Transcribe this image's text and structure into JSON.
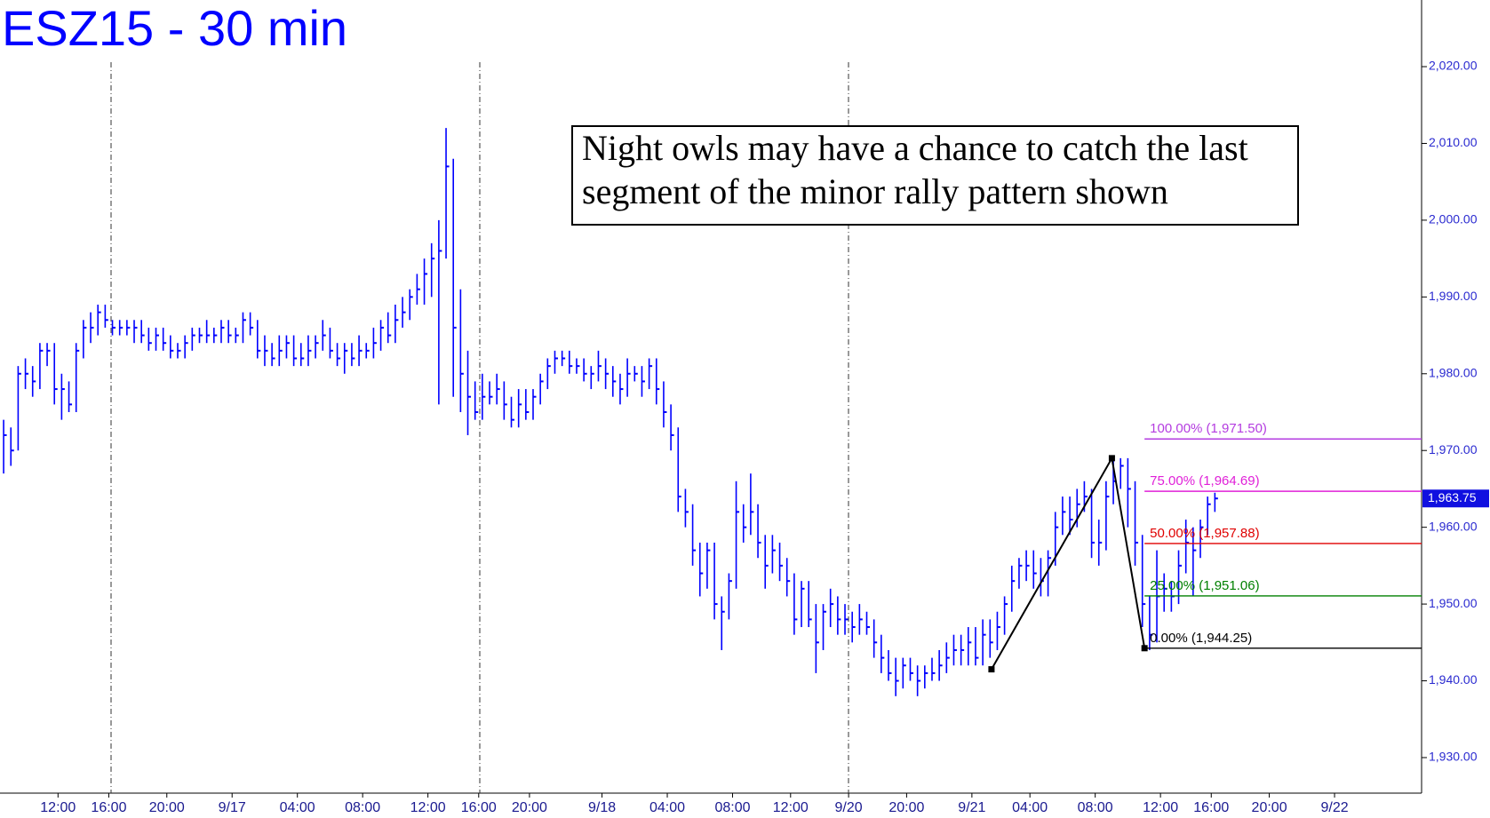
{
  "chart_data": {
    "type": "ohlc",
    "title": "ESZ15 - 30 min",
    "annotation": [
      "Night owls may have a chance to catch the last",
      "segment of the minor rally pattern shown"
    ],
    "color": "#0000ff",
    "xlim": [
      0,
      196
    ],
    "ylim": [
      1925.37,
      2028.68
    ],
    "xticks": [
      {
        "value": 8,
        "label": "12:00"
      },
      {
        "value": 15,
        "label": "16:00"
      },
      {
        "value": 23,
        "label": "20:00"
      },
      {
        "value": 32,
        "label": "9/17"
      },
      {
        "value": 41,
        "label": "04:00"
      },
      {
        "value": 50,
        "label": "08:00"
      },
      {
        "value": 59,
        "label": "12:00"
      },
      {
        "value": 66,
        "label": "16:00"
      },
      {
        "value": 73,
        "label": "20:00"
      },
      {
        "value": 83,
        "label": "9/18"
      },
      {
        "value": 92,
        "label": "04:00"
      },
      {
        "value": 101,
        "label": "08:00"
      },
      {
        "value": 109,
        "label": "12:00"
      },
      {
        "value": 117,
        "label": "9/20"
      },
      {
        "value": 125,
        "label": "20:00"
      },
      {
        "value": 134,
        "label": "9/21"
      },
      {
        "value": 142,
        "label": "04:00"
      },
      {
        "value": 151,
        "label": "08:00"
      },
      {
        "value": 160,
        "label": "12:00"
      },
      {
        "value": 167,
        "label": "16:00"
      },
      {
        "value": 175,
        "label": "20:00"
      },
      {
        "value": 184,
        "label": "9/22"
      }
    ],
    "yticks": [
      {
        "value": 1930,
        "label": "1,930.00"
      },
      {
        "value": 1940,
        "label": "1,940.00"
      },
      {
        "value": 1950,
        "label": "1,950.00"
      },
      {
        "value": 1960,
        "label": "1,960.00"
      },
      {
        "value": 1970,
        "label": "1,970.00"
      },
      {
        "value": 1980,
        "label": "1,980.00"
      },
      {
        "value": 1990,
        "label": "1,990.00"
      },
      {
        "value": 2000,
        "label": "2,000.00"
      },
      {
        "value": 2010,
        "label": "2,010.00"
      },
      {
        "value": 2020,
        "label": "2,020.00"
      }
    ],
    "high": [
      1974,
      1973,
      1981,
      1982,
      1981,
      1984,
      1984,
      1984,
      1980,
      1979,
      1984,
      1987,
      1988,
      1989,
      1989,
      1987,
      1987,
      1987,
      1987,
      1987,
      1986,
      1986,
      1986,
      1985,
      1984,
      1985,
      1986,
      1986,
      1987,
      1986,
      1987,
      1987,
      1986,
      1988,
      1988,
      1987,
      1985,
      1984,
      1985,
      1985,
      1985,
      1984,
      1985,
      1985,
      1987,
      1986,
      1984,
      1984,
      1984,
      1985,
      1984,
      1986,
      1987,
      1988,
      1989,
      1990,
      1991,
      1993,
      1995,
      1997,
      2000,
      2012,
      2008,
      1991,
      1983,
      1979,
      1980,
      1979,
      1980,
      1979,
      1977,
      1978,
      1978,
      1978,
      1980,
      1982,
      1983,
      1983,
      1983,
      1982,
      1982,
      1981,
      1983,
      1982,
      1981,
      1980,
      1982,
      1981,
      1981,
      1982,
      1982,
      1979,
      1976,
      1973,
      1965,
      1963,
      1958,
      1958,
      1958,
      1951,
      1954,
      1966,
      1963,
      1967,
      1963,
      1959,
      1959,
      1958,
      1956,
      1954,
      1953,
      1953,
      1950,
      1950,
      1952,
      1951,
      1950,
      1949,
      1950,
      1949,
      1948,
      1946,
      1944,
      1943,
      1943,
      1943,
      1942,
      1942,
      1943,
      1944,
      1945,
      1946,
      1946,
      1947,
      1947,
      1948,
      1948,
      1949,
      1951,
      1955,
      1956,
      1957,
      1957,
      1956,
      1957,
      1962,
      1964,
      1964,
      1965,
      1966,
      1965,
      1961,
      1966,
      1969,
      1969,
      1969,
      1966,
      1959,
      1951,
      1957,
      1954,
      1953,
      1957,
      1961,
      1960,
      1961,
      1964,
      1964.5
    ],
    "low": [
      1967,
      1968,
      1970,
      1978,
      1977,
      1978,
      1981,
      1976,
      1974,
      1975,
      1975,
      1982,
      1984,
      1985,
      1986,
      1985,
      1985,
      1985,
      1984,
      1984,
      1983,
      1983,
      1983,
      1982,
      1982,
      1982,
      1983,
      1984,
      1984,
      1984,
      1984,
      1984,
      1984,
      1984,
      1985,
      1982,
      1981,
      1981,
      1981,
      1982,
      1981,
      1981,
      1981,
      1982,
      1983,
      1982,
      1981,
      1980,
      1981,
      1981,
      1982,
      1982,
      1983,
      1984,
      1984,
      1986,
      1987,
      1989,
      1989,
      1990,
      1976,
      1995,
      1977,
      1975,
      1972,
      1974,
      1974,
      1976,
      1976,
      1974,
      1973,
      1973,
      1974,
      1974,
      1976,
      1978,
      1980,
      1981,
      1980,
      1980,
      1979,
      1978,
      1979,
      1978,
      1977,
      1976,
      1977,
      1979,
      1977,
      1978,
      1976,
      1973,
      1970,
      1962,
      1960,
      1955,
      1951,
      1952,
      1948,
      1944,
      1948,
      1952,
      1958,
      1959,
      1956,
      1952,
      1954,
      1953,
      1951,
      1946,
      1947,
      1947,
      1941,
      1944,
      1947,
      1946,
      1946,
      1945,
      1946,
      1946,
      1943,
      1941,
      1940,
      1938,
      1939,
      1940,
      1938,
      1939,
      1940,
      1940,
      1941,
      1942,
      1942,
      1942,
      1942,
      1942,
      1943,
      1944,
      1946,
      1949,
      1952,
      1953,
      1952,
      1951,
      1951,
      1955,
      1959,
      1959,
      1960,
      1962,
      1956,
      1955,
      1957,
      1963,
      1965,
      1960,
      1955,
      1947,
      1944,
      1945,
      1949,
      1949,
      1950,
      1954,
      1951,
      1956,
      1959,
      1962
    ],
    "close": [
      1972,
      1970,
      1980,
      1980,
      1979,
      1983,
      1983,
      1978,
      1978,
      1976,
      1983,
      1986,
      1986,
      1988,
      1987,
      1986,
      1986,
      1986,
      1986,
      1985,
      1984,
      1985,
      1984,
      1983,
      1983,
      1984,
      1985,
      1985,
      1985,
      1985,
      1986,
      1985,
      1985,
      1987,
      1986,
      1983,
      1983,
      1982,
      1983,
      1984,
      1982,
      1982,
      1983,
      1984,
      1985,
      1983,
      1982,
      1983,
      1982,
      1983,
      1983,
      1984,
      1986,
      1985,
      1987,
      1988,
      1990,
      1991,
      1993,
      1995,
      1996,
      2007,
      1986,
      1980,
      1977,
      1975,
      1977,
      1977,
      1978,
      1976,
      1974,
      1976,
      1975,
      1977,
      1979,
      1981,
      1982,
      1982,
      1981,
      1981,
      1980,
      1980,
      1981,
      1980,
      1979,
      1978,
      1980,
      1980,
      1979,
      1981,
      1978,
      1975,
      1972,
      1964,
      1962,
      1957,
      1954,
      1957,
      1950,
      1949,
      1953,
      1962,
      1960,
      1962,
      1958,
      1955,
      1957,
      1955,
      1953,
      1948,
      1952,
      1948,
      1945,
      1949,
      1950,
      1948,
      1948,
      1947,
      1948,
      1947,
      1945,
      1943,
      1941,
      1940,
      1942,
      1941,
      1940,
      1941,
      1941,
      1942,
      1943,
      1944,
      1944,
      1945,
      1943,
      1946,
      1945,
      1947,
      1950,
      1953,
      1955,
      1955,
      1954,
      1953,
      1956,
      1960,
      1962,
      1961,
      1963,
      1964,
      1958,
      1958,
      1964,
      1966,
      1968,
      1965,
      1958,
      1950,
      1946,
      1951,
      1952,
      1951,
      1955,
      1958,
      1957,
      1960,
      1963,
      1963.75
    ],
    "last_price": {
      "value": 1963.75,
      "label": "1,963.75"
    },
    "pattern": {
      "x": [
        136.7,
        153.3,
        157.8
      ],
      "y": [
        1941.5,
        1969,
        1944.25
      ]
    },
    "fib_levels": [
      {
        "value": 1971.5,
        "label": "100.00% (1,971.50)",
        "color": "#b43ce0"
      },
      {
        "value": 1964.69,
        "label": "75.00% (1,964.69)",
        "color": "#e020d8"
      },
      {
        "value": 1957.88,
        "label": "50.00% (1,957.88)",
        "color": "#e00000"
      },
      {
        "value": 1951.06,
        "label": "25.00% (1,951.06)",
        "color": "#008000"
      },
      {
        "value": 1944.25,
        "label": "0.00% (1,944.25)",
        "color": "#000000"
      }
    ],
    "fib_start": 157.8
  }
}
